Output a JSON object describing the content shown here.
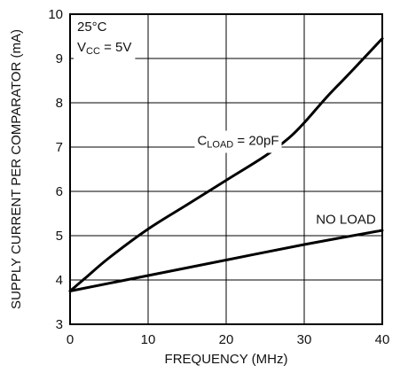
{
  "chart_data": {
    "type": "line",
    "xlabel": "FREQUENCY (MHz)",
    "ylabel": "SUPPLY CURRENT PER COMPARATOR (mA)",
    "xlim": [
      0,
      40
    ],
    "ylim": [
      3,
      10
    ],
    "x_ticks": [
      0,
      10,
      20,
      30,
      40
    ],
    "y_ticks": [
      3,
      4,
      5,
      6,
      7,
      8,
      9,
      10
    ],
    "grid": true,
    "legend": "none",
    "annotations": {
      "temperature": "25°C",
      "vcc": {
        "main": "V",
        "sub": "CC",
        "rest": " = 5V"
      },
      "cload": {
        "main": "C",
        "sub": "LOAD",
        "rest": " = 20pF"
      },
      "noload": "NO LOAD"
    },
    "series": [
      {
        "id": "cload",
        "color": "#000000",
        "x": [
          0,
          2,
          5,
          10,
          15,
          20,
          25,
          28,
          30,
          33,
          36,
          40
        ],
        "y": [
          3.75,
          4.05,
          4.5,
          5.15,
          5.7,
          6.25,
          6.8,
          7.2,
          7.55,
          8.15,
          8.7,
          9.45
        ]
      },
      {
        "id": "noload",
        "color": "#000000",
        "x": [
          0,
          10,
          20,
          30,
          40
        ],
        "y": [
          3.75,
          4.1,
          4.45,
          4.8,
          5.12
        ]
      }
    ]
  }
}
